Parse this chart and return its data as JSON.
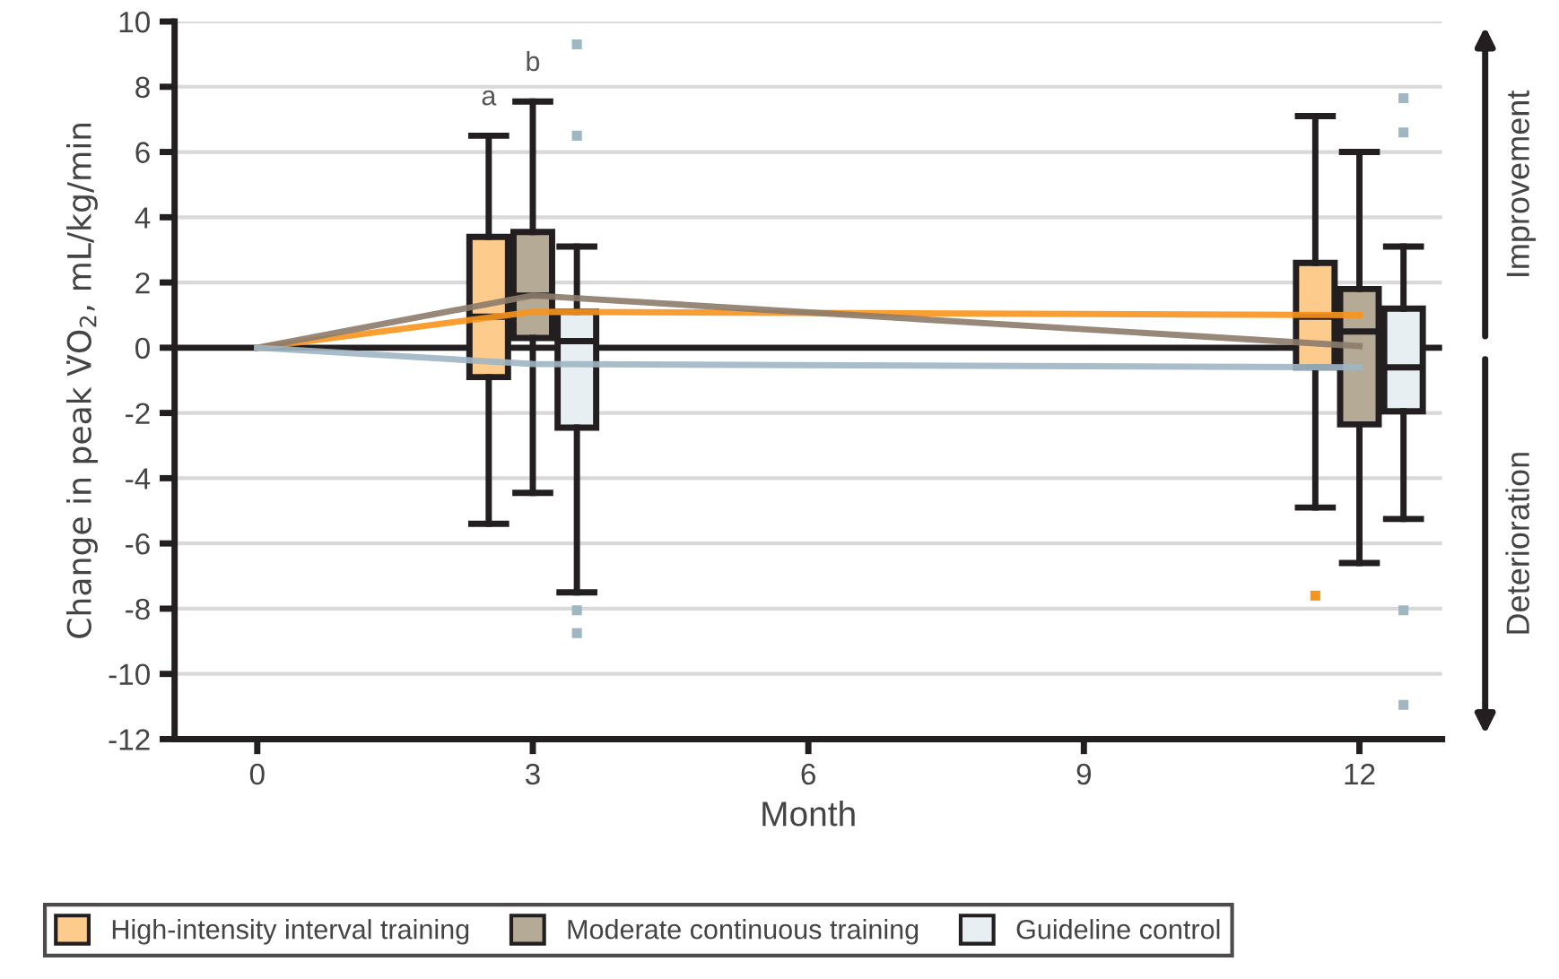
{
  "chart_data": {
    "type": "box",
    "xlabel": "Month",
    "ylabel": "Change in peak V̇O$_{2}$, mL/kg/min",
    "xlim": [
      -0.9,
      12.9
    ],
    "xticks": [
      0,
      3,
      6,
      9,
      12
    ],
    "ylim": [
      -12,
      10
    ],
    "yticks": [
      -12,
      -10,
      -8,
      -6,
      -4,
      -2,
      0,
      2,
      4,
      6,
      8,
      10
    ],
    "grid": "y",
    "legend": "bottom",
    "ref_lines": [
      {
        "axis": "y",
        "value": 0,
        "color": "#231f20"
      }
    ],
    "annotations": [
      "a",
      "b",
      "Improvement",
      "Deterioration"
    ],
    "series": [
      {
        "name": "High-intensity interval training",
        "color": "#fdcb8c",
        "x": [
          3,
          12
        ],
        "boxes": [
          {
            "low": -5.4,
            "q1": -0.9,
            "median": 0.95,
            "q3": 3.4,
            "high": 6.5
          },
          {
            "low": -4.9,
            "q1": -0.6,
            "median": 0.95,
            "q3": 2.6,
            "high": 7.1,
            "outliers": [
              -7.6
            ]
          }
        ]
      },
      {
        "name": "Moderate continuous training",
        "color": "#b5aa96",
        "x": [
          3,
          12
        ],
        "boxes": [
          {
            "low": -4.45,
            "q1": 0.3,
            "median": 1.6,
            "q3": 3.55,
            "high": 7.55
          },
          {
            "low": -6.6,
            "q1": -2.35,
            "median": 0.5,
            "q3": 1.8,
            "high": 6.0
          }
        ]
      },
      {
        "name": "Guideline control",
        "color": "#e8eff3",
        "x": [
          3,
          12
        ],
        "boxes": [
          {
            "low": -7.5,
            "q1": -2.45,
            "median": 0.2,
            "q3": 1.1,
            "high": 3.1,
            "outliers": [
              9.3,
              6.5,
              -8.05,
              -8.75
            ]
          },
          {
            "low": -5.25,
            "q1": -1.95,
            "median": -0.6,
            "q3": 1.2,
            "high": 3.1,
            "outliers": [
              7.65,
              6.6,
              -8.05,
              -10.95
            ]
          }
        ]
      },
      {
        "type": "line",
        "color": "#f7941d",
        "x": [
          0,
          3,
          12
        ],
        "values": [
          0,
          1.1,
          1.0
        ]
      },
      {
        "type": "line",
        "color": "#8c7b6b",
        "x": [
          0,
          3,
          12
        ],
        "values": [
          0,
          1.6,
          0.05
        ]
      },
      {
        "type": "line",
        "color": "#9fb6c3",
        "x": [
          0,
          3,
          12
        ],
        "values": [
          0,
          -0.5,
          -0.6
        ]
      }
    ]
  }
}
